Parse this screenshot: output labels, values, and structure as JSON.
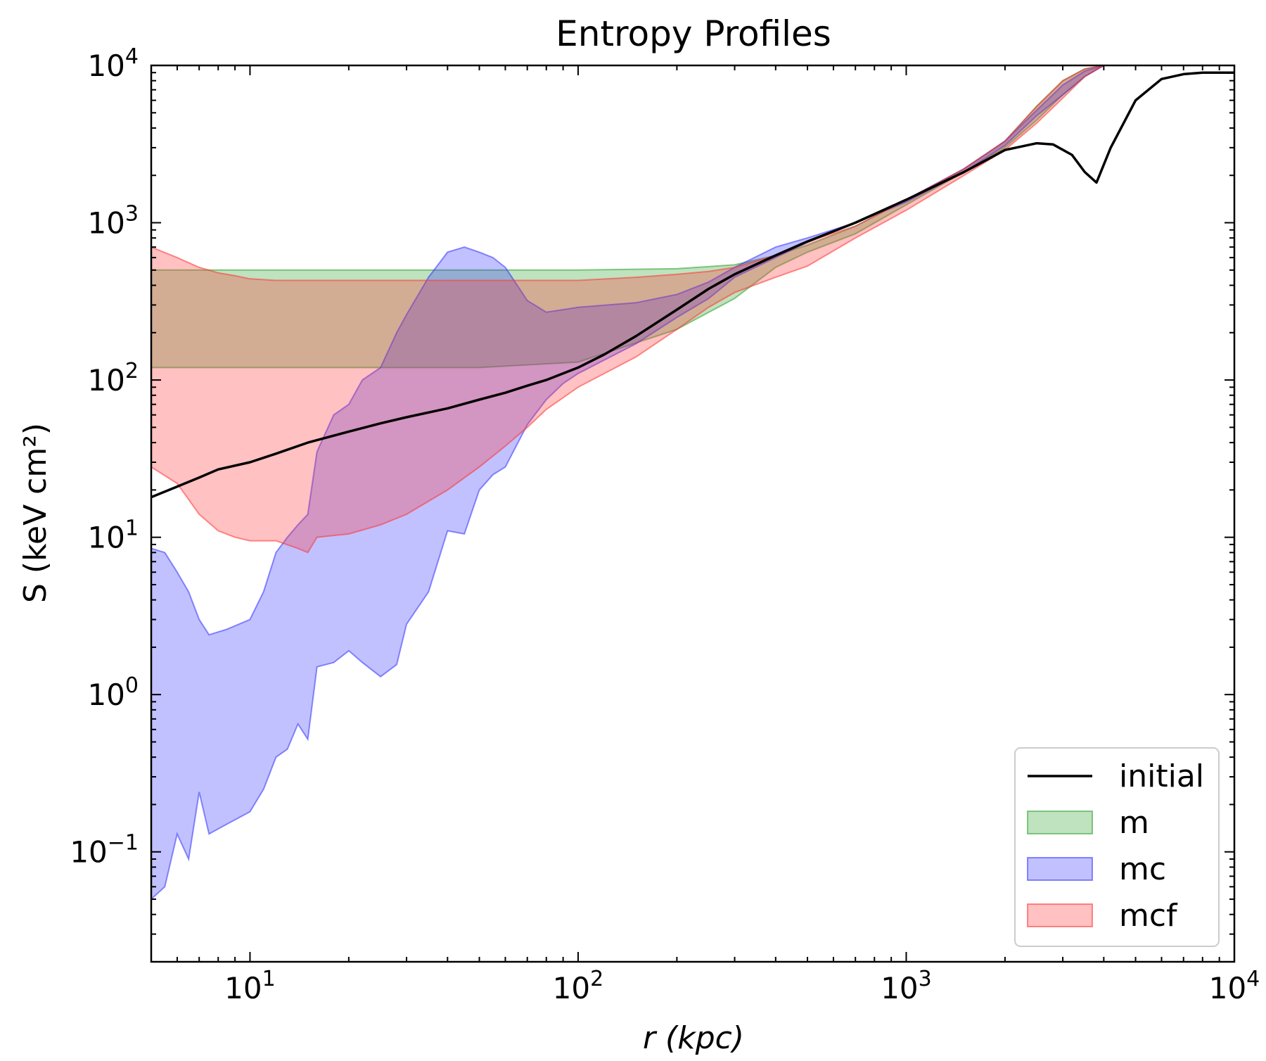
{
  "chart_data": {
    "type": "area",
    "title": "Entropy Profiles",
    "xlabel": "r (kpc)",
    "ylabel": "S (keV cm²)",
    "xscale": "log",
    "yscale": "log",
    "xlim": [
      5,
      10000
    ],
    "ylim": [
      0.02,
      10000
    ],
    "xticks": [
      10,
      100,
      1000,
      10000
    ],
    "yticks": [
      0.1,
      1,
      10,
      100,
      1000,
      10000
    ],
    "grid": false,
    "legend": "lower-right",
    "series": [
      {
        "name": "initial",
        "kind": "line",
        "color": "#000000",
        "x": [
          5,
          6,
          7,
          8,
          10,
          12,
          15,
          20,
          25,
          30,
          40,
          50,
          60,
          70,
          80,
          100,
          120,
          150,
          200,
          250,
          300,
          400,
          500,
          700,
          1000,
          1500,
          2000,
          2500,
          2800,
          3200,
          3500,
          3800,
          4200,
          5000,
          6000,
          7000,
          8000,
          10000
        ],
        "y": [
          18,
          21,
          24,
          27,
          30,
          34,
          40,
          47,
          53,
          58,
          66,
          75,
          83,
          92,
          100,
          120,
          145,
          190,
          280,
          380,
          470,
          620,
          760,
          1000,
          1400,
          2100,
          2900,
          3200,
          3150,
          2700,
          2100,
          1800,
          3000,
          6000,
          8200,
          8800,
          9000,
          9000
        ]
      },
      {
        "name": "m",
        "kind": "band",
        "color": "#2ca02c",
        "x": [
          5,
          10,
          20,
          50,
          100,
          200,
          300,
          400,
          500,
          700,
          1000,
          1500,
          2000,
          2500,
          3000,
          3500,
          4000
        ],
        "lower": [
          120,
          120,
          120,
          120,
          130,
          210,
          330,
          520,
          650,
          850,
          1300,
          2100,
          3000,
          4500,
          6500,
          8500,
          10000
        ],
        "upper": [
          500,
          500,
          500,
          500,
          500,
          510,
          540,
          620,
          720,
          950,
          1400,
          2200,
          3300,
          5500,
          8000,
          9500,
          10000
        ]
      },
      {
        "name": "mc",
        "kind": "band",
        "color": "#3333ff",
        "x": [
          5,
          5.5,
          6,
          6.5,
          7,
          7.5,
          8.5,
          10,
          11,
          12,
          13,
          14,
          15,
          16,
          18,
          20,
          22,
          25,
          28,
          30,
          35,
          40,
          45,
          50,
          55,
          60,
          70,
          80,
          90,
          100,
          150,
          200,
          250,
          300,
          400,
          500,
          700,
          1000,
          1500,
          2000,
          2500,
          3000,
          3500,
          4000
        ],
        "lower": [
          0.05,
          0.06,
          0.13,
          0.09,
          0.24,
          0.13,
          0.15,
          0.18,
          0.25,
          0.4,
          0.45,
          0.65,
          0.52,
          1.5,
          1.6,
          1.9,
          1.6,
          1.3,
          1.55,
          2.8,
          4.5,
          11,
          10.5,
          20,
          25,
          28,
          52,
          75,
          95,
          110,
          170,
          250,
          330,
          450,
          600,
          750,
          1000,
          1350,
          2100,
          3100,
          4800,
          6500,
          8500,
          10000
        ],
        "upper": [
          8.5,
          8,
          6,
          4.5,
          3,
          2.4,
          2.6,
          3,
          4.5,
          8,
          10,
          12,
          14,
          35,
          60,
          70,
          100,
          120,
          200,
          260,
          450,
          650,
          700,
          650,
          600,
          520,
          320,
          270,
          280,
          290,
          310,
          350,
          420,
          520,
          700,
          800,
          1000,
          1400,
          2200,
          3300,
          5200,
          7500,
          9200,
          10000
        ]
      },
      {
        "name": "mcf",
        "kind": "band",
        "color": "#ff3333",
        "x": [
          5,
          6,
          7,
          8,
          9,
          10,
          12,
          14,
          15,
          16,
          20,
          25,
          30,
          40,
          50,
          60,
          70,
          80,
          100,
          150,
          200,
          250,
          300,
          400,
          500,
          700,
          1000,
          1500,
          2000,
          2500,
          3000,
          3500,
          4000
        ],
        "lower": [
          28,
          22,
          14,
          11,
          10,
          9.5,
          9.5,
          8.5,
          8,
          10,
          10.5,
          12,
          14,
          20,
          28,
          38,
          50,
          65,
          90,
          140,
          210,
          290,
          360,
          450,
          530,
          800,
          1200,
          2000,
          2900,
          4300,
          6200,
          8500,
          10000
        ],
        "upper": [
          700,
          600,
          520,
          480,
          460,
          440,
          430,
          430,
          430,
          430,
          430,
          430,
          430,
          430,
          430,
          430,
          430,
          430,
          430,
          450,
          470,
          490,
          520,
          620,
          760,
          950,
          1400,
          2200,
          3300,
          5500,
          8000,
          9500,
          10000
        ]
      }
    ]
  }
}
